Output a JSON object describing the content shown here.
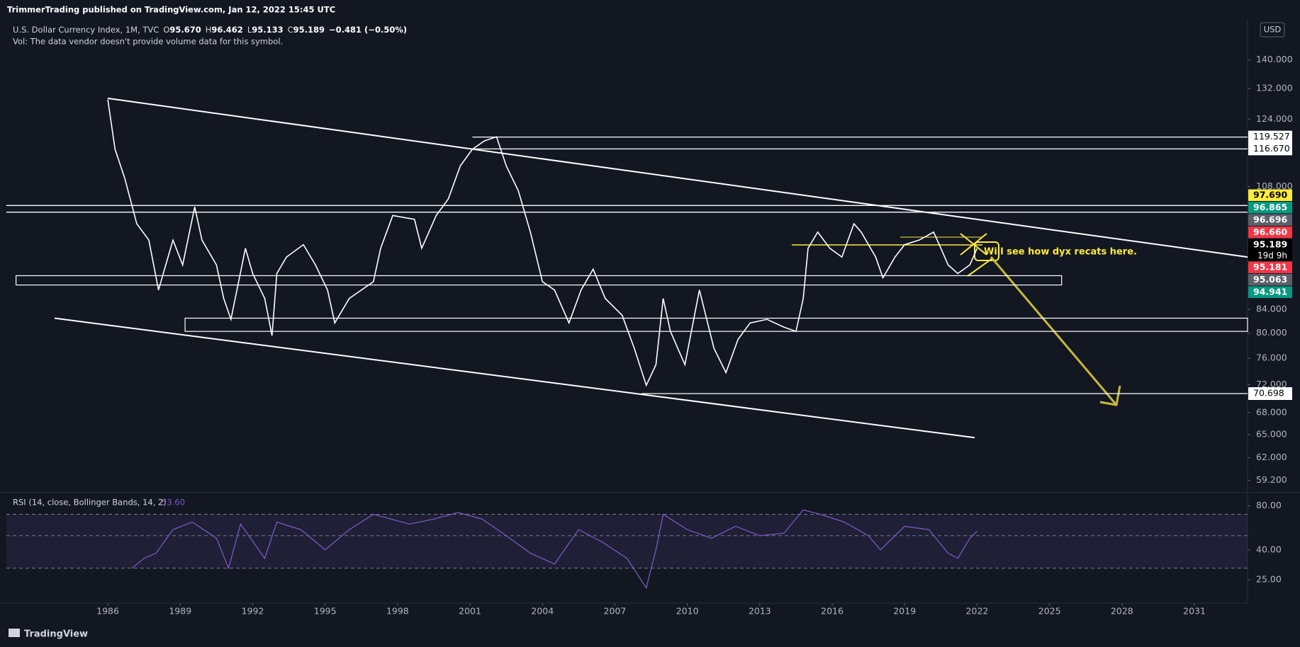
{
  "header": {
    "published": "TrimmerTrading published on TradingView.com, Jan 12, 2022 15:45 UTC"
  },
  "chart_data": [
    {
      "type": "line",
      "scale": "log",
      "grid": false,
      "currency": "USD",
      "legend": {
        "fields": [
          {
            "key": "O",
            "value": "95.670"
          },
          {
            "key": "H",
            "value": "96.462"
          },
          {
            "key": "L",
            "value": "95.133"
          },
          {
            "key": "C",
            "value": "95.189"
          }
        ],
        "change": "−0.481 (−0.50%)",
        "volume_note": "Vol: The data vendor doesn't provide volume data for this symbol."
      },
      "x": [
        1986.0,
        1986.3,
        1986.7,
        1987.2,
        1987.7,
        1988.1,
        1988.4,
        1988.7,
        1989.1,
        1989.6,
        1989.9,
        1990.5,
        1990.8,
        1991.1,
        1991.7,
        1992.0,
        1992.5,
        1992.8,
        1993.0,
        1993.4,
        1994.1,
        1994.6,
        1995.1,
        1995.4,
        1996.0,
        1997.0,
        1997.3,
        1997.8,
        1998.7,
        1999.0,
        1999.6,
        2000.1,
        2000.6,
        2001.1,
        2001.6,
        2002.1,
        2002.5,
        2003.0,
        2003.5,
        2004.0,
        2004.5,
        2005.1,
        2005.6,
        2006.1,
        2006.6,
        2007.3,
        2007.8,
        2008.3,
        2008.7,
        2009.0,
        2009.3,
        2009.9,
        2010.5,
        2011.1,
        2011.6,
        2012.1,
        2012.6,
        2013.3,
        2014.0,
        2014.5,
        2014.8,
        2015.0,
        2015.4,
        2015.9,
        2016.4,
        2016.9,
        2017.2,
        2017.8,
        2018.1,
        2018.6,
        2019.0,
        2019.6,
        2020.2,
        2020.5,
        2020.8,
        2021.2,
        2021.7,
        2022.0
      ],
      "series": [
        {
          "name": "U.S. Dollar Currency Index, 1M, TVC",
          "color": "#ffffff",
          "values": [
            129.1,
            116.6,
            109.9,
            100.1,
            96.8,
            87.4,
            92.0,
            96.8,
            92.0,
            103.6,
            96.8,
            92.0,
            85.9,
            82.3,
            95.2,
            90.4,
            85.9,
            79.6,
            90.4,
            93.5,
            95.9,
            92.0,
            87.4,
            81.7,
            85.9,
            88.9,
            95.2,
            101.8,
            101.0,
            95.2,
            101.8,
            105.3,
            112.7,
            116.6,
            118.6,
            119.6,
            112.7,
            107.1,
            98.4,
            88.9,
            87.4,
            81.7,
            87.4,
            91.2,
            85.9,
            83.0,
            77.6,
            71.9,
            75.0,
            85.9,
            80.3,
            75.0,
            87.4,
            77.6,
            73.8,
            79.0,
            81.7,
            82.3,
            81.0,
            80.3,
            85.9,
            95.2,
            98.4,
            95.2,
            93.5,
            100.1,
            98.4,
            93.5,
            89.6,
            93.5,
            95.9,
            96.8,
            98.4,
            95.2,
            92.0,
            90.4,
            92.0,
            95.189
          ]
        }
      ],
      "xlim": [
        1981.8,
        2033.2
      ],
      "xticks": [
        1986,
        1989,
        1992,
        1995,
        1998,
        2001,
        2004,
        2007,
        2010,
        2013,
        2016,
        2019,
        2022,
        2025,
        2028,
        2031
      ],
      "ylim": [
        57.8,
        152.4
      ],
      "yticks": [
        {
          "value": 59.2,
          "label": "59.200"
        },
        {
          "value": 62,
          "label": "62.000"
        },
        {
          "value": 65,
          "label": "65.000"
        },
        {
          "value": 68,
          "label": "68.000"
        },
        {
          "value": 72,
          "label": "72.000"
        },
        {
          "value": 76,
          "label": "76.000"
        },
        {
          "value": 80,
          "label": "80.000"
        },
        {
          "value": 84,
          "label": "84.000"
        },
        {
          "value": 108,
          "label": "108.000"
        },
        {
          "value": 124,
          "label": "124.000"
        },
        {
          "value": 132,
          "label": "132.000"
        },
        {
          "value": 140,
          "label": "140.000"
        }
      ],
      "price_labels": [
        {
          "value": 97.69,
          "label": "97.690",
          "color": "#ffeb3b",
          "text_color": "#000000"
        },
        {
          "value": 96.865,
          "label": "96.865",
          "color": "#089981",
          "text_color": "#ffffff"
        },
        {
          "value": 96.696,
          "label": "96.696",
          "color": "#5d606b",
          "text_color": "#ffffff"
        },
        {
          "value": 96.66,
          "label": "96.660",
          "color": "#f23645",
          "text_color": "#ffffff"
        },
        {
          "value": 95.189,
          "label": "95.189",
          "color": "#000000",
          "text_color": "#ffffff",
          "countdown": "19d 9h"
        },
        {
          "value": 95.181,
          "label": "95.181",
          "color": "#f23645",
          "text_color": "#ffffff"
        },
        {
          "value": 95.063,
          "label": "95.063",
          "color": "#5d606b",
          "text_color": "#ffffff"
        },
        {
          "value": 94.941,
          "label": "94.941",
          "color": "#089981",
          "text_color": "#ffffff"
        }
      ],
      "levels": [
        {
          "value": 119.527,
          "label": "119.527",
          "from": 2001.1
        },
        {
          "value": 116.67,
          "label": "116.670",
          "from": 2001.1
        },
        {
          "value": 70.698,
          "label": "70.698",
          "from": 2008.1
        },
        {
          "value": 103.9,
          "from": 1981.8
        },
        {
          "value": 102.5,
          "from": 1981.8
        }
      ],
      "boxes": [
        {
          "years": [
            1982.2,
            2025.5
          ],
          "prices": [
            88.3,
            90.0
          ]
        },
        {
          "years": [
            1989.2,
            2033.2
          ],
          "prices": [
            80.3,
            82.5
          ]
        }
      ],
      "trendlines": [
        {
          "years": [
            1986.0,
            2033.2
          ],
          "prices": [
            129.4,
            93.5
          ]
        },
        {
          "years": [
            1983.8,
            2021.9
          ],
          "prices": [
            82.5,
            64.6
          ]
        }
      ],
      "annotations": [
        {
          "text": "Will see how dyx recats here."
        }
      ]
    },
    {
      "type": "rsi",
      "scale": "log",
      "title": "RSI (14, close, Bollinger Bands, 14, 2)",
      "last_value_label": "53.60",
      "color": "#7e57c2",
      "x": [
        1987.0,
        1987.5,
        1988.0,
        1988.7,
        1989.5,
        1990.5,
        1991.0,
        1991.5,
        1992.5,
        1993.0,
        1994.0,
        1995.0,
        1996.0,
        1997.0,
        1998.5,
        1999.5,
        2000.5,
        2001.5,
        2002.5,
        2003.5,
        2004.5,
        2005.5,
        2006.5,
        2007.5,
        2008.3,
        2008.7,
        2009.0,
        2010.0,
        2011.0,
        2012.0,
        2013.0,
        2014.0,
        2014.8,
        2015.5,
        2016.5,
        2017.5,
        2018.0,
        2019.0,
        2020.0,
        2020.8,
        2021.2,
        2021.7,
        2022.0
      ],
      "values": [
        30,
        35,
        38,
        55,
        62,
        48,
        30,
        60,
        35,
        62,
        55,
        40,
        55,
        70,
        60,
        65,
        72,
        65,
        50,
        38,
        32,
        55,
        45,
        35,
        22,
        40,
        70,
        55,
        48,
        58,
        50,
        52,
        75,
        70,
        62,
        50,
        40,
        58,
        55,
        38,
        35,
        48,
        53.6
      ],
      "ylim": [
        17.3,
        97.3
      ],
      "yticks": [
        {
          "value": 80,
          "label": "80.00"
        },
        {
          "value": 40,
          "label": "40.00"
        },
        {
          "value": 25,
          "label": "25.00"
        }
      ],
      "bands": [
        70,
        50,
        30
      ]
    }
  ],
  "footer": {
    "brand": "TradingView"
  }
}
